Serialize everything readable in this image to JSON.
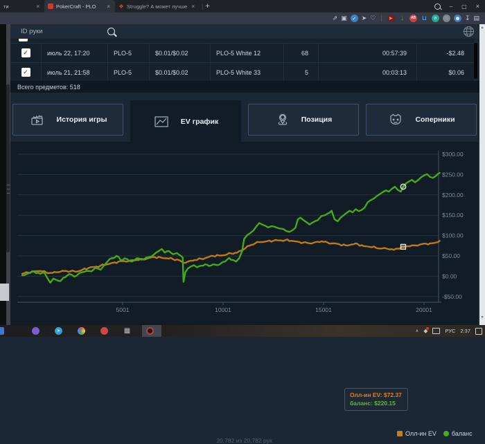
{
  "browser": {
    "window_title": "PokerCraft - PLO",
    "tabs": [
      {
        "title": "ти"
      },
      {
        "title": "PokerCraft - PLO"
      },
      {
        "title": "Struggle? А может лучше"
      }
    ],
    "new_tab_label": "+",
    "controls": {
      "minimize": "–",
      "restore": "▢",
      "close": "×",
      "tab_close": "×"
    }
  },
  "glyphs": {
    "share": "⇗",
    "camera": "▣",
    "shield_check": "✓",
    "send": "➤",
    "heart": "♡",
    "divider": "|",
    "video": "▶",
    "arrow_down": "↓",
    "adblock": "AB",
    "cart": "⊔",
    "a_ext": "a",
    "ring": "◌",
    "avatar": "☻",
    "download": "↧",
    "panels": "▤",
    "check": "✓",
    "grid": "▦",
    "tg": "➤",
    "chev_up": "∧",
    "tray_shield": "◆",
    "scroll_up": "▲",
    "scroll_dn": "▼"
  },
  "page": {
    "search": {
      "placeholder": "ID руки"
    },
    "table": {
      "rows": [
        {
          "checked": true,
          "date": "июль 22, 17:20",
          "game": "PLO-5",
          "stakes": "$0.01/$0.02",
          "table_name": "PLO-5 White 12",
          "hands": "68",
          "duration": "00:57:39",
          "result": "-$2.48"
        },
        {
          "checked": true,
          "date": "июль 21, 21:58",
          "game": "PLO-5",
          "stakes": "$0.01/$0.02",
          "table_name": "PLO-5 White 33",
          "hands": "5",
          "duration": "00:03:13",
          "result": "$0.06"
        }
      ],
      "summary": "Всего предметов: 518"
    },
    "tabs": [
      {
        "label": "История игры"
      },
      {
        "label": "EV график"
      },
      {
        "label": "Позиция"
      },
      {
        "label": "Соперники"
      }
    ],
    "footer": "20,782 из 20,782 рук"
  },
  "chart_data": {
    "type": "line",
    "xlabel": "",
    "ylabel": "",
    "xlim": [
      1,
      20782
    ],
    "ylim": [
      -50,
      300
    ],
    "grid": true,
    "legend_position": "bottom-right",
    "x_ticks": [
      "5001",
      "10001",
      "15001",
      "20001"
    ],
    "x_tick_values": [
      5001,
      10001,
      15001,
      20001
    ],
    "y_ticks": [
      "$300.00",
      "$250.00",
      "$200.00",
      "$150.00",
      "$100.00",
      "$50.00",
      "$0.00",
      "-$50.00"
    ],
    "y_tick_values": [
      300,
      250,
      200,
      150,
      100,
      50,
      0,
      -50
    ],
    "legend": [
      {
        "name": "Олл-ин EV",
        "color": "#bf7a16",
        "marker": "square"
      },
      {
        "name": "баланс",
        "color": "#44ab17",
        "marker": "circle"
      }
    ],
    "tooltip": {
      "line1": "Олл-ин EV: $72.37",
      "line2": "баланс: $220.15",
      "hand": 18966,
      "ev": 72.37,
      "balance": 220.15
    },
    "series": [
      {
        "name": "Олл-ин EV",
        "color": "#bf7a16",
        "points": [
          [
            1,
            6
          ],
          [
            300,
            9
          ],
          [
            600,
            12
          ],
          [
            900,
            13
          ],
          [
            1200,
            9
          ],
          [
            1500,
            8
          ],
          [
            1800,
            10
          ],
          [
            2100,
            13
          ],
          [
            2400,
            12
          ],
          [
            2700,
            11
          ],
          [
            3000,
            16
          ],
          [
            3300,
            20
          ],
          [
            3600,
            23
          ],
          [
            3900,
            26
          ],
          [
            4200,
            29
          ],
          [
            4500,
            33
          ],
          [
            4800,
            36
          ],
          [
            5100,
            37
          ],
          [
            5400,
            39
          ],
          [
            5700,
            40
          ],
          [
            6000,
            42
          ],
          [
            6300,
            45
          ],
          [
            6600,
            47
          ],
          [
            6900,
            46
          ],
          [
            7200,
            44
          ],
          [
            7500,
            42
          ],
          [
            7800,
            40
          ],
          [
            8030,
            33
          ],
          [
            8300,
            37
          ],
          [
            8600,
            40
          ],
          [
            8900,
            43
          ],
          [
            9200,
            46
          ],
          [
            9500,
            50
          ],
          [
            9800,
            51
          ],
          [
            10100,
            52
          ],
          [
            10400,
            56
          ],
          [
            10700,
            58
          ],
          [
            11000,
            65
          ],
          [
            11300,
            75
          ],
          [
            11600,
            81
          ],
          [
            11900,
            84
          ],
          [
            12200,
            86
          ],
          [
            12500,
            87
          ],
          [
            12800,
            88
          ],
          [
            13100,
            89
          ],
          [
            13400,
            87
          ],
          [
            13700,
            85
          ],
          [
            14000,
            83
          ],
          [
            14300,
            81
          ],
          [
            14600,
            84
          ],
          [
            14900,
            86
          ],
          [
            15200,
            83
          ],
          [
            15500,
            81
          ],
          [
            15800,
            78
          ],
          [
            16100,
            76
          ],
          [
            16400,
            78
          ],
          [
            16700,
            79
          ],
          [
            17000,
            74
          ],
          [
            17300,
            72
          ],
          [
            17600,
            70
          ],
          [
            17900,
            68
          ],
          [
            18200,
            67
          ],
          [
            18500,
            65
          ],
          [
            18700,
            68
          ],
          [
            18966,
            72.37
          ],
          [
            19200,
            74
          ],
          [
            19500,
            76
          ],
          [
            19800,
            78
          ],
          [
            20100,
            80
          ],
          [
            20400,
            81
          ],
          [
            20600,
            83
          ],
          [
            20782,
            87
          ]
        ]
      },
      {
        "name": "баланс",
        "color": "#44ab17",
        "points": [
          [
            1,
            2
          ],
          [
            300,
            7
          ],
          [
            600,
            11
          ],
          [
            900,
            6
          ],
          [
            1100,
            9
          ],
          [
            1250,
            -4
          ],
          [
            1400,
            -16
          ],
          [
            1550,
            -6
          ],
          [
            1700,
            -9
          ],
          [
            1900,
            -12
          ],
          [
            2050,
            -4
          ],
          [
            2250,
            2
          ],
          [
            2450,
            4
          ],
          [
            2600,
            -1
          ],
          [
            2800,
            6
          ],
          [
            3000,
            10
          ],
          [
            3200,
            13
          ],
          [
            3450,
            12
          ],
          [
            3650,
            21
          ],
          [
            3900,
            16
          ],
          [
            4100,
            28
          ],
          [
            4250,
            36
          ],
          [
            4450,
            44
          ],
          [
            4700,
            50
          ],
          [
            4900,
            40
          ],
          [
            5100,
            44
          ],
          [
            5350,
            37
          ],
          [
            5600,
            40
          ],
          [
            5800,
            44
          ],
          [
            6050,
            41
          ],
          [
            6300,
            47
          ],
          [
            6550,
            53
          ],
          [
            6800,
            62
          ],
          [
            6950,
            67
          ],
          [
            7100,
            58
          ],
          [
            7300,
            62
          ],
          [
            7500,
            54
          ],
          [
            7700,
            57
          ],
          [
            7900,
            50
          ],
          [
            7990,
            46
          ],
          [
            8030,
            -14
          ],
          [
            8120,
            10
          ],
          [
            8250,
            19
          ],
          [
            8400,
            24
          ],
          [
            8550,
            27
          ],
          [
            8700,
            22
          ],
          [
            8900,
            26
          ],
          [
            9100,
            29
          ],
          [
            9300,
            25
          ],
          [
            9500,
            29
          ],
          [
            9700,
            27
          ],
          [
            9900,
            32
          ],
          [
            10100,
            36
          ],
          [
            10300,
            45
          ],
          [
            10500,
            40
          ],
          [
            10650,
            36
          ],
          [
            10800,
            44
          ],
          [
            10950,
            62
          ],
          [
            11050,
            92
          ],
          [
            11200,
            101
          ],
          [
            11350,
            106
          ],
          [
            11500,
            112
          ],
          [
            11650,
            122
          ],
          [
            11800,
            131
          ],
          [
            11950,
            127
          ],
          [
            12100,
            124
          ],
          [
            12250,
            120
          ],
          [
            12400,
            123
          ],
          [
            12550,
            122
          ],
          [
            12700,
            119
          ],
          [
            12850,
            117
          ],
          [
            13000,
            116
          ],
          [
            13150,
            111
          ],
          [
            13300,
            109
          ],
          [
            13450,
            113
          ],
          [
            13600,
            119
          ],
          [
            13720,
            140
          ],
          [
            13850,
            144
          ],
          [
            14000,
            138
          ],
          [
            14150,
            133
          ],
          [
            14300,
            127
          ],
          [
            14450,
            132
          ],
          [
            14600,
            136
          ],
          [
            14800,
            143
          ],
          [
            15000,
            149
          ],
          [
            15200,
            154
          ],
          [
            15400,
            161
          ],
          [
            15550,
            140
          ],
          [
            15700,
            135
          ],
          [
            15850,
            144
          ],
          [
            16000,
            150
          ],
          [
            16150,
            156
          ],
          [
            16300,
            161
          ],
          [
            16450,
            157
          ],
          [
            16600,
            165
          ],
          [
            16750,
            160
          ],
          [
            16900,
            163
          ],
          [
            17050,
            169
          ],
          [
            17200,
            182
          ],
          [
            17350,
            187
          ],
          [
            17500,
            191
          ],
          [
            17650,
            197
          ],
          [
            17800,
            202
          ],
          [
            17950,
            207
          ],
          [
            18100,
            211
          ],
          [
            18250,
            208
          ],
          [
            18400,
            215
          ],
          [
            18550,
            220
          ],
          [
            18700,
            212
          ],
          [
            18850,
            208
          ],
          [
            18966,
            220.15
          ],
          [
            19100,
            228
          ],
          [
            19250,
            233
          ],
          [
            19400,
            237
          ],
          [
            19550,
            231
          ],
          [
            19700,
            236
          ],
          [
            19850,
            243
          ],
          [
            20000,
            248
          ],
          [
            20150,
            251
          ],
          [
            20300,
            244
          ],
          [
            20450,
            242
          ],
          [
            20600,
            247
          ],
          [
            20782,
            254
          ]
        ]
      }
    ]
  },
  "taskbar": {
    "lang": "РУС",
    "time": "2:37"
  }
}
